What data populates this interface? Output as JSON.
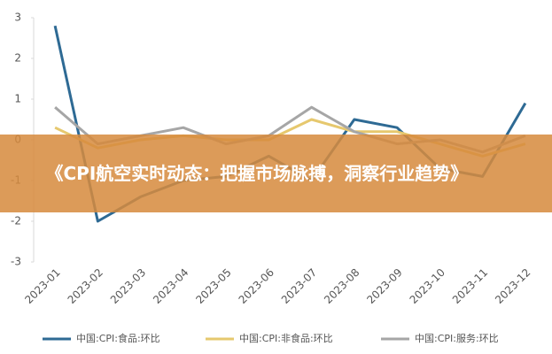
{
  "chart_data": {
    "type": "line",
    "categories": [
      "2023-01",
      "2023-02",
      "2023-03",
      "2023-04",
      "2023-05",
      "2023-06",
      "2023-07",
      "2023-08",
      "2023-09",
      "2023-10",
      "2023-11",
      "2023-12"
    ],
    "series": [
      {
        "name": "中国:CPI:食品:环比",
        "color": "#2e6a94",
        "values": [
          2.8,
          -2.0,
          -1.4,
          -1.0,
          -0.9,
          -0.4,
          -1.0,
          0.5,
          0.3,
          -0.7,
          -0.9,
          0.9
        ]
      },
      {
        "name": "中国:CPI:非食品:环比",
        "color": "#e6c86e",
        "values": [
          0.3,
          -0.2,
          0.0,
          0.1,
          0.0,
          0.0,
          0.5,
          0.2,
          0.2,
          -0.1,
          -0.4,
          -0.1
        ]
      },
      {
        "name": "中国:CPI:服务:环比",
        "color": "#a6a6a6",
        "values": [
          0.8,
          -0.1,
          0.1,
          0.3,
          -0.1,
          0.1,
          0.8,
          0.2,
          -0.1,
          0.0,
          -0.3,
          0.1
        ]
      }
    ],
    "ylim": [
      -3,
      3
    ],
    "yticks": [
      -3,
      -2,
      -1,
      0,
      1,
      2,
      3
    ],
    "grid": false,
    "legend": "bottom"
  },
  "banner": {
    "text": "《CPI航空实时动态：把握市场脉搏，洞察行业趋势》"
  }
}
